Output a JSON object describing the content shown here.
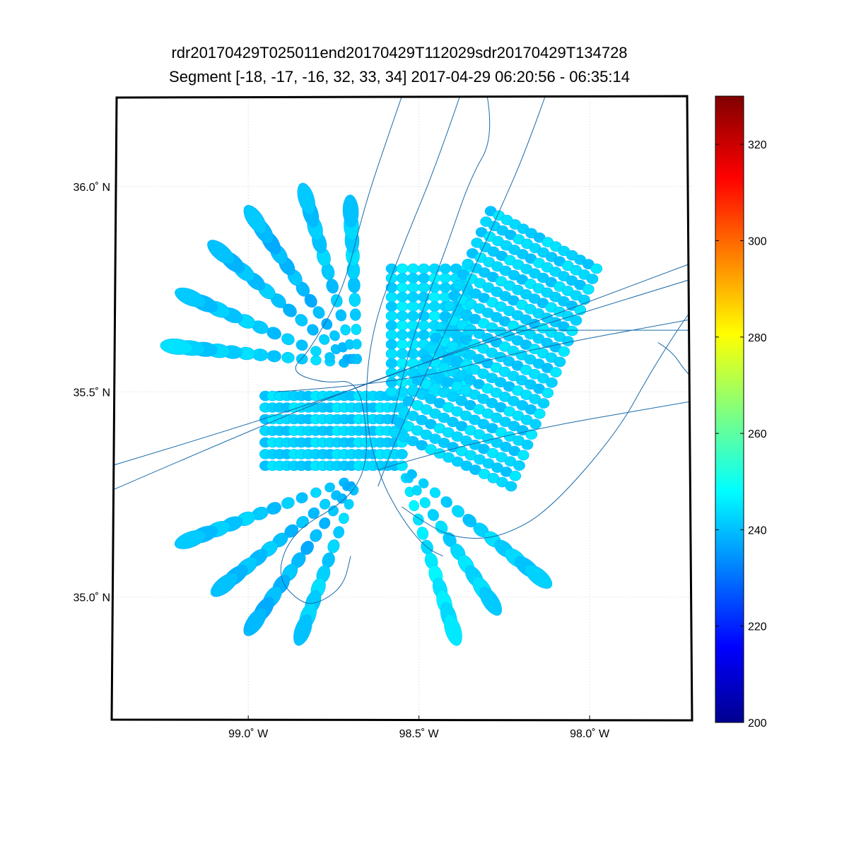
{
  "figure": {
    "title_line1": "rdr20170429T025011end20170429T112029sdr20170429T134728",
    "title_line2": "Segment [-18, -17, -16, 32, 33, 34] 2017-04-29 06:20:56 - 06:35:14"
  },
  "chart_data": {
    "type": "scatter",
    "title": "rdr20170429T025011end20170429T112029sdr20170429T134728",
    "subtitle": "Segment [-18, -17, -16, 32, 33, 34] 2017-04-29 06:20:56 - 06:35:14",
    "projection": "map",
    "xlim": [
      -99.4,
      -97.7
    ],
    "ylim": [
      34.7,
      36.22
    ],
    "grid": true,
    "x_ticks": [
      {
        "value": -99.0,
        "label": "99.0˚ W"
      },
      {
        "value": -98.5,
        "label": "98.5˚ W"
      },
      {
        "value": -98.0,
        "label": "98.0˚ W"
      }
    ],
    "y_ticks": [
      {
        "value": 36.0,
        "label": "36.0˚ N"
      },
      {
        "value": 35.5,
        "label": "35.5˚ N"
      },
      {
        "value": 35.0,
        "label": "35.0˚ N"
      }
    ],
    "colorbar": {
      "min": 200,
      "max": 330,
      "colormap": "jet",
      "ticks": [
        200,
        220,
        240,
        260,
        280,
        300,
        320
      ]
    },
    "footprint_color": "#19d6f2",
    "track_color": "#1a6aa8",
    "scan_arms": [
      {
        "lon0": -98.72,
        "lat0": 35.57,
        "lon1": -99.21,
        "lat1": 35.61,
        "value": 243
      },
      {
        "lon0": -98.72,
        "lat0": 35.57,
        "lon1": -99.17,
        "lat1": 35.73,
        "value": 242
      },
      {
        "lon0": -98.71,
        "lat0": 35.58,
        "lon1": -99.08,
        "lat1": 35.84,
        "value": 241
      },
      {
        "lon0": -98.7,
        "lat0": 35.58,
        "lon1": -98.98,
        "lat1": 35.92,
        "value": 240
      },
      {
        "lon0": -98.69,
        "lat0": 35.58,
        "lon1": -98.83,
        "lat1": 35.97,
        "value": 242
      },
      {
        "lon0": -98.68,
        "lat0": 35.58,
        "lon1": -98.7,
        "lat1": 35.94,
        "value": 243
      },
      {
        "lon0": -98.72,
        "lat0": 35.28,
        "lon1": -99.17,
        "lat1": 35.14,
        "value": 242
      },
      {
        "lon0": -98.71,
        "lat0": 35.27,
        "lon1": -99.07,
        "lat1": 35.03,
        "value": 241
      },
      {
        "lon0": -98.7,
        "lat0": 35.27,
        "lon1": -98.98,
        "lat1": 34.94,
        "value": 240
      },
      {
        "lon0": -98.69,
        "lat0": 35.26,
        "lon1": -98.84,
        "lat1": 34.92,
        "value": 243
      },
      {
        "lon0": -98.54,
        "lat0": 35.29,
        "lon1": -98.4,
        "lat1": 34.92,
        "value": 246
      },
      {
        "lon0": -98.53,
        "lat0": 35.29,
        "lon1": -98.29,
        "lat1": 34.99,
        "value": 244
      },
      {
        "lon0": -98.52,
        "lat0": 35.3,
        "lon1": -98.15,
        "lat1": 35.05,
        "value": 243
      }
    ],
    "grid_blocks": [
      {
        "name": "west-rows",
        "corners": [
          [
            -98.95,
            35.49
          ],
          [
            -98.55,
            35.49
          ],
          [
            -98.55,
            35.32
          ],
          [
            -98.95,
            35.32
          ]
        ],
        "rows": 7,
        "cols": 20,
        "value": 243
      },
      {
        "name": "north-columns",
        "corners": [
          [
            -98.58,
            35.8
          ],
          [
            -98.36,
            35.8
          ],
          [
            -98.36,
            35.5
          ],
          [
            -98.58,
            35.5
          ]
        ],
        "rows": 14,
        "cols": 8,
        "value": 244
      },
      {
        "name": "rotated-swath",
        "corners": [
          [
            -98.29,
            35.94
          ],
          [
            -97.98,
            35.8
          ],
          [
            -98.23,
            35.27
          ],
          [
            -98.57,
            35.4
          ]
        ],
        "rows": 22,
        "cols": 14,
        "value": 243
      }
    ],
    "tracks": [
      {
        "lon": [
          -99.4,
          -98.88,
          -98.45,
          -97.68
        ],
        "lat": [
          35.32,
          35.45,
          35.58,
          35.82
        ]
      },
      {
        "lon": [
          -99.4,
          -98.9,
          -98.5,
          -97.68
        ],
        "lat": [
          35.26,
          35.44,
          35.57,
          35.78
        ]
      },
      {
        "lon": [
          -98.92,
          -98.55,
          -98.2,
          -97.68
        ],
        "lat": [
          35.5,
          35.52,
          35.6,
          35.68
        ]
      },
      {
        "lon": [
          -98.62,
          -98.3,
          -97.68
        ],
        "lat": [
          35.31,
          35.39,
          35.48
        ]
      },
      {
        "lon": [
          -98.3,
          -98.28,
          -98.35,
          -98.42,
          -98.48,
          -98.53,
          -98.58
        ],
        "lat": [
          36.22,
          36.12,
          36.02,
          35.85,
          35.72,
          35.6,
          35.42
        ]
      },
      {
        "lon": [
          -98.13,
          -98.19,
          -98.27,
          -98.36,
          -98.46,
          -98.56,
          -98.62
        ],
        "lat": [
          36.22,
          36.08,
          35.93,
          35.76,
          35.58,
          35.4,
          35.27
        ]
      },
      {
        "lon": [
          -98.38,
          -98.45,
          -98.55,
          -98.64,
          -98.66,
          -98.62,
          -98.55,
          -98.48,
          -98.43
        ],
        "lat": [
          36.22,
          36.05,
          35.85,
          35.65,
          35.45,
          35.3,
          35.19,
          35.12,
          35.1
        ]
      },
      {
        "lon": [
          -98.55,
          -98.6,
          -98.66,
          -98.72,
          -98.82,
          -98.88,
          -98.78,
          -98.68,
          -98.65,
          -98.66,
          -98.72,
          -98.87,
          -98.92,
          -98.84,
          -98.78,
          -98.72,
          -98.7
        ],
        "lat": [
          36.22,
          36.1,
          35.95,
          35.75,
          35.6,
          35.55,
          35.52,
          35.53,
          35.4,
          35.3,
          35.23,
          35.16,
          35.05,
          34.98,
          34.99,
          35.03,
          35.1
        ]
      },
      {
        "lon": [
          -98.55,
          -98.45,
          -98.35,
          -98.25,
          -98.12,
          -97.92,
          -97.82,
          -97.72,
          -97.68
        ],
        "lat": [
          35.22,
          35.16,
          35.14,
          35.15,
          35.21,
          35.4,
          35.55,
          35.68,
          35.72
        ]
      },
      {
        "lon": [
          -98.45,
          -97.9,
          -97.68
        ],
        "lat": [
          35.65,
          35.65,
          35.65
        ]
      },
      {
        "lon": [
          -97.8,
          -97.76,
          -97.72,
          -97.68
        ],
        "lat": [
          35.62,
          35.6,
          35.55,
          35.52
        ]
      }
    ]
  }
}
